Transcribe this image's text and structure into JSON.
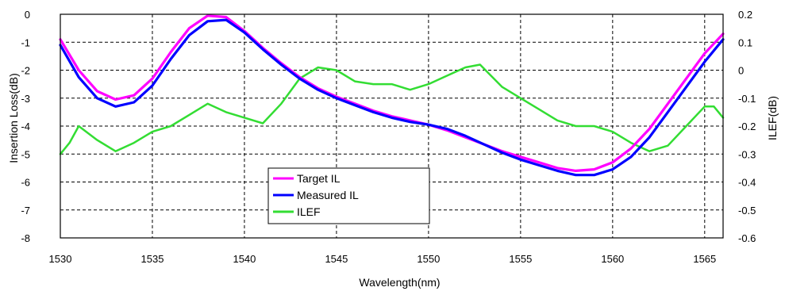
{
  "chart_data": {
    "type": "line",
    "xlabel": "Wavelength(nm)",
    "ylabel": "Insertion Loss(dB)",
    "y2label": "ILEF(dB)",
    "xlim": [
      1530,
      1566
    ],
    "ylim": [
      -8,
      0
    ],
    "y2lim": [
      -0.6,
      0.2
    ],
    "xticks": [
      1530,
      1535,
      1540,
      1545,
      1550,
      1555,
      1560,
      1565
    ],
    "yticks": [
      0,
      -1,
      -2,
      -3,
      -4,
      -5,
      -6,
      -7,
      -8
    ],
    "y2ticks": [
      0.2,
      0.1,
      0,
      -0.1,
      -0.2,
      -0.3,
      -0.4,
      -0.5,
      -0.6
    ],
    "grid": true,
    "legend_position": "bottom-center",
    "series": [
      {
        "name": "Target IL",
        "axis": "left",
        "color": "#ff00ff",
        "x": [
          1530,
          1531,
          1532,
          1533,
          1534,
          1535,
          1536,
          1537,
          1538,
          1539,
          1540,
          1541,
          1542,
          1543,
          1544,
          1545,
          1546,
          1547,
          1548,
          1549,
          1550,
          1551,
          1552,
          1553,
          1554,
          1555,
          1556,
          1557,
          1558,
          1559,
          1560,
          1561,
          1562,
          1563,
          1564,
          1565,
          1566
        ],
        "y": [
          -0.9,
          -2.0,
          -2.75,
          -3.05,
          -2.9,
          -2.3,
          -1.35,
          -0.5,
          -0.05,
          -0.1,
          -0.6,
          -1.2,
          -1.75,
          -2.25,
          -2.65,
          -2.95,
          -3.2,
          -3.45,
          -3.65,
          -3.8,
          -3.95,
          -4.15,
          -4.4,
          -4.65,
          -4.9,
          -5.1,
          -5.3,
          -5.5,
          -5.6,
          -5.55,
          -5.3,
          -4.8,
          -4.1,
          -3.2,
          -2.3,
          -1.4,
          -0.7
        ]
      },
      {
        "name": "Measured IL",
        "axis": "left",
        "color": "#0000ff",
        "x": [
          1530,
          1531,
          1532,
          1533,
          1534,
          1535,
          1536,
          1537,
          1538,
          1539,
          1540,
          1541,
          1542,
          1543,
          1544,
          1545,
          1546,
          1547,
          1548,
          1549,
          1550,
          1551,
          1552,
          1553,
          1554,
          1555,
          1556,
          1557,
          1558,
          1559,
          1560,
          1561,
          1562,
          1563,
          1564,
          1565,
          1566
        ],
        "y": [
          -1.1,
          -2.25,
          -3.0,
          -3.3,
          -3.15,
          -2.55,
          -1.6,
          -0.75,
          -0.25,
          -0.2,
          -0.65,
          -1.25,
          -1.8,
          -2.3,
          -2.7,
          -3.0,
          -3.25,
          -3.5,
          -3.7,
          -3.85,
          -3.95,
          -4.1,
          -4.35,
          -4.65,
          -4.95,
          -5.2,
          -5.4,
          -5.6,
          -5.75,
          -5.75,
          -5.55,
          -5.1,
          -4.4,
          -3.5,
          -2.6,
          -1.7,
          -0.9
        ]
      },
      {
        "name": "ILEF",
        "axis": "right",
        "color": "#33dd33",
        "x": [
          1530,
          1530.5,
          1531,
          1532,
          1533,
          1534,
          1535,
          1536,
          1537,
          1538,
          1539,
          1540,
          1541,
          1542,
          1543,
          1544,
          1545,
          1546,
          1547,
          1548,
          1549,
          1550,
          1551,
          1552,
          1552.8,
          1554,
          1555,
          1556,
          1557,
          1558,
          1559,
          1560,
          1561,
          1562,
          1563,
          1564,
          1565,
          1565.5,
          1566
        ],
        "y": [
          -0.3,
          -0.26,
          -0.2,
          -0.25,
          -0.29,
          -0.26,
          -0.22,
          -0.2,
          -0.16,
          -0.12,
          -0.15,
          -0.17,
          -0.19,
          -0.12,
          -0.03,
          0.01,
          0.0,
          -0.04,
          -0.05,
          -0.05,
          -0.07,
          -0.05,
          -0.02,
          0.01,
          0.02,
          -0.06,
          -0.1,
          -0.14,
          -0.18,
          -0.2,
          -0.2,
          -0.22,
          -0.26,
          -0.29,
          -0.27,
          -0.2,
          -0.13,
          -0.13,
          -0.17
        ]
      }
    ]
  }
}
